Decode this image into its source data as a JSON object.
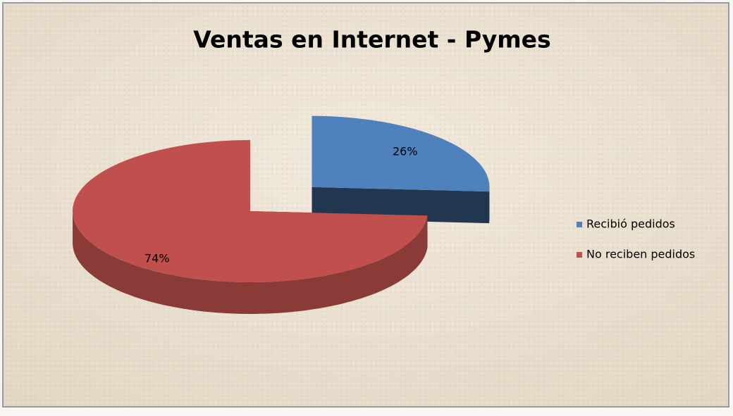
{
  "chart_data": {
    "type": "pie",
    "title": "Ventas en Internet - Pymes",
    "categories": [
      "Recibió pedidos",
      "No reciben pedidos"
    ],
    "values": [
      26,
      74
    ],
    "value_labels": [
      "26%",
      "74%"
    ],
    "colors": [
      "#4f81bd",
      "#c0504d"
    ],
    "legend": "right"
  }
}
